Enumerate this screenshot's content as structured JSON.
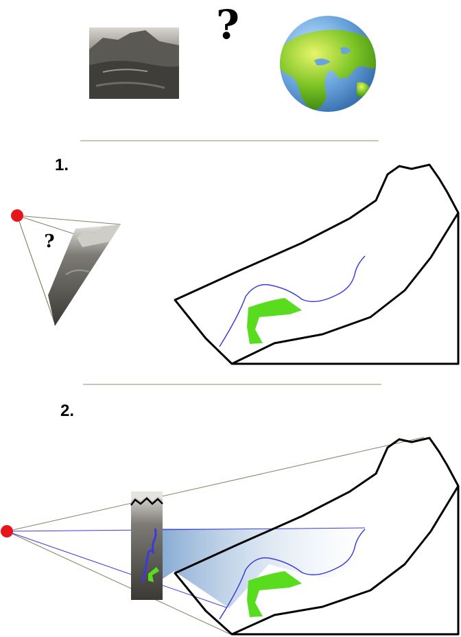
{
  "top": {
    "question_mark": "?",
    "photo": "mountain-village-photo",
    "globe": "earth-globe"
  },
  "steps": [
    {
      "label": "1.",
      "small_question_mark": "?"
    },
    {
      "label": "2."
    }
  ],
  "colors": {
    "camera_point": "#e8141c",
    "terrain_outline": "#000000",
    "river_line": "#3b3bdc",
    "green_area": "#59dc1e",
    "divider": "#b8b09a",
    "sight_lines": "#8a7f66",
    "projection_fill": "#6f9fd0"
  }
}
